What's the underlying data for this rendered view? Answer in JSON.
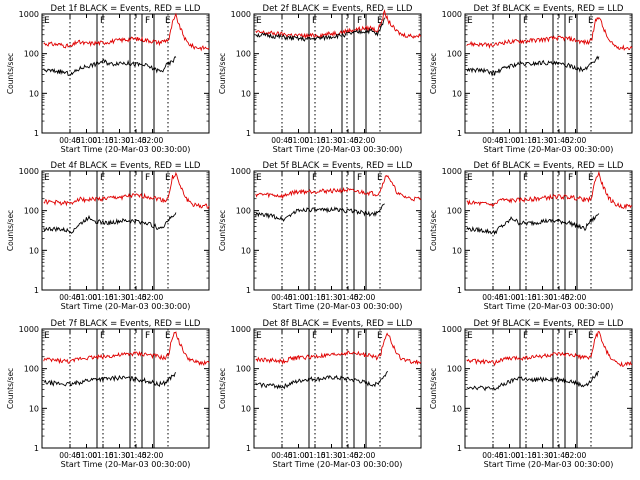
{
  "chart_data": [
    {
      "type": "line",
      "title": "Det 1f BLACK = Events, RED = LLD",
      "xlabel": "Start Time (20-Mar-03 00:30:00)",
      "ylabel": "Counts/sec",
      "yscale": "log",
      "ylim": [
        1,
        1000
      ],
      "xlim_minutes": [
        35,
        131
      ],
      "xtick_labels": [
        "00:45",
        "01:00",
        "01:15",
        "01:30",
        "01:45",
        "02:00"
      ],
      "ytick_labels": [
        "1",
        "10",
        "100",
        "1000"
      ],
      "region_letters": [
        "E",
        "F",
        "F",
        "E"
      ],
      "series": [
        {
          "color": "#e00000",
          "x": [
            36,
            45,
            52,
            55,
            60,
            70,
            80,
            88,
            92,
            98,
            102,
            108,
            110,
            112,
            114,
            118,
            122,
            126,
            131
          ],
          "y": [
            180,
            170,
            150,
            200,
            180,
            190,
            220,
            240,
            230,
            210,
            190,
            230,
            600,
            900,
            500,
            200,
            150,
            140,
            140
          ]
        },
        {
          "color": "#000000",
          "x": [
            36,
            45,
            52,
            55,
            58,
            62,
            66,
            70,
            75,
            80,
            88,
            95,
            100,
            104,
            106,
            108,
            110,
            112
          ],
          "y": [
            38,
            36,
            30,
            38,
            45,
            50,
            55,
            65,
            55,
            60,
            55,
            50,
            40,
            35,
            50,
            55,
            65,
            80
          ]
        }
      ]
    },
    {
      "type": "line",
      "title": "Det 2f BLACK = Events, RED = LLD",
      "xlabel": "Start Time (20-Mar-03 00:30:00)",
      "ylabel": "Counts/sec",
      "yscale": "log",
      "ylim": [
        1,
        1000
      ],
      "xlim_minutes": [
        35,
        131
      ],
      "xtick_labels": [
        "00:45",
        "01:00",
        "01:15",
        "01:30",
        "01:45",
        "02:00"
      ],
      "ytick_labels": [
        "1",
        "10",
        "100",
        "1000"
      ],
      "region_letters": [
        "E",
        "F",
        "F",
        "E"
      ],
      "series": [
        {
          "color": "#e00000",
          "x": [
            36,
            45,
            55,
            65,
            75,
            85,
            95,
            102,
            106,
            108,
            110,
            112,
            116,
            120,
            126,
            131
          ],
          "y": [
            350,
            330,
            300,
            280,
            300,
            350,
            420,
            450,
            380,
            600,
            1100,
            700,
            400,
            300,
            280,
            280
          ]
        },
        {
          "color": "#000000",
          "x": [
            36,
            45,
            55,
            65,
            75,
            85,
            95,
            102,
            106,
            108,
            110
          ],
          "y": [
            300,
            280,
            250,
            230,
            250,
            290,
            350,
            380,
            300,
            450,
            800
          ]
        }
      ]
    },
    {
      "type": "line",
      "title": "Det 3f BLACK = Events, RED = LLD",
      "xlabel": "Start Time (20-Mar-03 00:30:00)",
      "ylabel": "Counts/sec",
      "yscale": "log",
      "ylim": [
        1,
        1000
      ],
      "xlim_minutes": [
        35,
        131
      ],
      "xtick_labels": [
        "00:45",
        "01:00",
        "01:15",
        "01:30",
        "01:45",
        "02:00"
      ],
      "ytick_labels": [
        "1",
        "10",
        "100",
        "1000"
      ],
      "region_letters": [
        "E",
        "F",
        "F",
        "E"
      ],
      "series": [
        {
          "color": "#e00000",
          "x": [
            36,
            45,
            52,
            56,
            60,
            70,
            80,
            88,
            95,
            102,
            106,
            108,
            110,
            112,
            114,
            118,
            122,
            126,
            131
          ],
          "y": [
            180,
            170,
            160,
            190,
            200,
            210,
            230,
            250,
            240,
            200,
            190,
            250,
            650,
            900,
            500,
            200,
            150,
            140,
            140
          ]
        },
        {
          "color": "#000000",
          "x": [
            36,
            45,
            52,
            56,
            60,
            66,
            72,
            80,
            88,
            95,
            102,
            104,
            106,
            108,
            110,
            112
          ],
          "y": [
            40,
            38,
            32,
            40,
            48,
            55,
            55,
            60,
            55,
            50,
            40,
            38,
            50,
            60,
            70,
            85
          ]
        }
      ]
    },
    {
      "type": "line",
      "title": "Det 4f BLACK = Events, RED = LLD",
      "xlabel": "Start Time (20-Mar-03 00:30:00)",
      "ylabel": "Counts/sec",
      "yscale": "log",
      "ylim": [
        1,
        1000
      ],
      "xlim_minutes": [
        35,
        131
      ],
      "xtick_labels": [
        "00:45",
        "01:00",
        "01:15",
        "01:30",
        "01:45",
        "02:00"
      ],
      "ytick_labels": [
        "1",
        "10",
        "100",
        "1000"
      ],
      "region_letters": [
        "E",
        "F",
        "F",
        "E"
      ],
      "series": [
        {
          "color": "#e00000",
          "x": [
            36,
            45,
            52,
            55,
            60,
            70,
            80,
            88,
            95,
            102,
            106,
            108,
            110,
            112,
            114,
            118,
            122,
            126,
            131
          ],
          "y": [
            170,
            160,
            150,
            200,
            190,
            200,
            220,
            240,
            230,
            200,
            180,
            240,
            700,
            850,
            450,
            200,
            140,
            130,
            130
          ]
        },
        {
          "color": "#000000",
          "x": [
            36,
            45,
            52,
            55,
            58,
            62,
            66,
            70,
            75,
            80,
            88,
            95,
            100,
            104,
            106,
            108,
            110,
            112
          ],
          "y": [
            35,
            34,
            30,
            40,
            50,
            70,
            55,
            50,
            50,
            55,
            55,
            50,
            40,
            35,
            50,
            60,
            70,
            90
          ]
        }
      ]
    },
    {
      "type": "line",
      "title": "Det 5f BLACK = Events, RED = LLD",
      "xlabel": "Start Time (20-Mar-03 00:30:00)",
      "ylabel": "Counts/sec",
      "yscale": "log",
      "ylim": [
        1,
        1000
      ],
      "xlim_minutes": [
        35,
        131
      ],
      "xtick_labels": [
        "00:45",
        "01:00",
        "01:15",
        "01:30",
        "01:45",
        "02:00"
      ],
      "ytick_labels": [
        "1",
        "10",
        "100",
        "1000"
      ],
      "region_letters": [
        "E",
        "F",
        "F",
        "E"
      ],
      "series": [
        {
          "color": "#e00000",
          "x": [
            36,
            45,
            52,
            56,
            60,
            70,
            80,
            88,
            95,
            102,
            106,
            108,
            110,
            112,
            114,
            118,
            122,
            126,
            131
          ],
          "y": [
            260,
            250,
            230,
            280,
            300,
            310,
            320,
            330,
            300,
            280,
            260,
            350,
            650,
            800,
            500,
            260,
            220,
            200,
            200
          ]
        },
        {
          "color": "#000000",
          "x": [
            36,
            45,
            52,
            56,
            60,
            66,
            72,
            80,
            88,
            95,
            102,
            106,
            108,
            110
          ],
          "y": [
            80,
            75,
            60,
            80,
            100,
            110,
            100,
            110,
            100,
            95,
            80,
            90,
            120,
            150
          ]
        }
      ]
    },
    {
      "type": "line",
      "title": "Det 6f BLACK = Events, RED = LLD",
      "xlabel": "Start Time (20-Mar-03 00:30:00)",
      "ylabel": "Counts/sec",
      "yscale": "log",
      "ylim": [
        1,
        1000
      ],
      "xlim_minutes": [
        35,
        131
      ],
      "xtick_labels": [
        "00:45",
        "01:00",
        "01:15",
        "01:30",
        "01:45",
        "02:00"
      ],
      "ytick_labels": [
        "1",
        "10",
        "100",
        "1000"
      ],
      "region_letters": [
        "E",
        "F",
        "F",
        "E"
      ],
      "series": [
        {
          "color": "#e00000",
          "x": [
            36,
            45,
            52,
            55,
            60,
            70,
            80,
            88,
            95,
            102,
            106,
            108,
            110,
            112,
            114,
            118,
            122,
            126,
            131
          ],
          "y": [
            160,
            150,
            140,
            190,
            180,
            190,
            210,
            230,
            220,
            200,
            180,
            230,
            650,
            850,
            450,
            200,
            140,
            130,
            130
          ]
        },
        {
          "color": "#000000",
          "x": [
            36,
            45,
            52,
            55,
            58,
            62,
            66,
            70,
            75,
            80,
            88,
            95,
            100,
            104,
            106,
            108,
            110,
            112
          ],
          "y": [
            35,
            32,
            28,
            38,
            45,
            65,
            50,
            48,
            50,
            55,
            55,
            50,
            40,
            35,
            48,
            58,
            68,
            85
          ]
        }
      ]
    },
    {
      "type": "line",
      "title": "Det 7f BLACK = Events, RED = LLD",
      "xlabel": "Start Time (20-Mar-03 00:30:00)",
      "ylabel": "Counts/sec",
      "yscale": "log",
      "ylim": [
        1,
        1000
      ],
      "xlim_minutes": [
        35,
        131
      ],
      "xtick_labels": [
        "00:45",
        "01:00",
        "01:15",
        "01:30",
        "01:45",
        "02:00"
      ],
      "ytick_labels": [
        "1",
        "10",
        "100",
        "1000"
      ],
      "region_letters": [
        "E",
        "F",
        "F",
        "E"
      ],
      "series": [
        {
          "color": "#e00000",
          "x": [
            36,
            45,
            52,
            56,
            60,
            70,
            80,
            88,
            95,
            102,
            106,
            108,
            110,
            112,
            114,
            118,
            122,
            126,
            131
          ],
          "y": [
            170,
            160,
            150,
            180,
            190,
            200,
            220,
            240,
            230,
            200,
            180,
            250,
            650,
            850,
            450,
            200,
            150,
            140,
            140
          ]
        },
        {
          "color": "#000000",
          "x": [
            36,
            45,
            52,
            56,
            60,
            66,
            72,
            80,
            88,
            95,
            102,
            106,
            108,
            110,
            112
          ],
          "y": [
            45,
            42,
            40,
            45,
            50,
            55,
            55,
            60,
            55,
            50,
            40,
            45,
            55,
            65,
            80
          ]
        }
      ]
    },
    {
      "type": "line",
      "title": "Det 8f BLACK = Events, RED = LLD",
      "xlabel": "Start Time (20-Mar-03 00:30:00)",
      "ylabel": "Counts/sec",
      "yscale": "log",
      "ylim": [
        1,
        1000
      ],
      "xlim_minutes": [
        35,
        131
      ],
      "xtick_labels": [
        "00:45",
        "01:00",
        "01:15",
        "01:30",
        "01:45",
        "02:00"
      ],
      "ytick_labels": [
        "1",
        "10",
        "100",
        "1000"
      ],
      "region_letters": [
        "E",
        "F",
        "F",
        "E"
      ],
      "series": [
        {
          "color": "#e00000",
          "x": [
            36,
            45,
            52,
            56,
            60,
            70,
            80,
            88,
            95,
            102,
            106,
            108,
            110,
            112,
            114,
            118,
            122,
            126,
            131
          ],
          "y": [
            170,
            165,
            150,
            180,
            190,
            200,
            220,
            250,
            240,
            210,
            190,
            250,
            600,
            800,
            450,
            210,
            160,
            150,
            150
          ]
        },
        {
          "color": "#000000",
          "x": [
            36,
            45,
            52,
            56,
            60,
            66,
            72,
            80,
            88,
            95,
            102,
            106,
            108,
            110,
            112
          ],
          "y": [
            40,
            38,
            35,
            42,
            48,
            55,
            55,
            60,
            55,
            50,
            40,
            42,
            55,
            65,
            85
          ]
        }
      ]
    },
    {
      "type": "line",
      "title": "Det 9f BLACK = Events, RED = LLD",
      "xlabel": "Start Time (20-Mar-03 00:30:00)",
      "ylabel": "Counts/sec",
      "yscale": "log",
      "ylim": [
        1,
        1000
      ],
      "xlim_minutes": [
        35,
        131
      ],
      "xtick_labels": [
        "00:45",
        "01:00",
        "01:15",
        "01:30",
        "01:45",
        "02:00"
      ],
      "ytick_labels": [
        "1",
        "10",
        "100",
        "1000"
      ],
      "region_letters": [
        "E",
        "F",
        "F",
        "E"
      ],
      "series": [
        {
          "color": "#e00000",
          "x": [
            36,
            45,
            52,
            56,
            60,
            70,
            80,
            88,
            95,
            102,
            106,
            108,
            110,
            112,
            114,
            118,
            122,
            126,
            131
          ],
          "y": [
            160,
            150,
            140,
            170,
            180,
            190,
            210,
            230,
            220,
            200,
            180,
            240,
            650,
            850,
            450,
            200,
            140,
            130,
            130
          ]
        },
        {
          "color": "#000000",
          "x": [
            36,
            45,
            52,
            56,
            60,
            66,
            72,
            80,
            88,
            95,
            102,
            106,
            108,
            110,
            112
          ],
          "y": [
            35,
            33,
            30,
            38,
            45,
            60,
            50,
            55,
            55,
            50,
            38,
            40,
            55,
            65,
            85
          ]
        }
      ]
    }
  ]
}
